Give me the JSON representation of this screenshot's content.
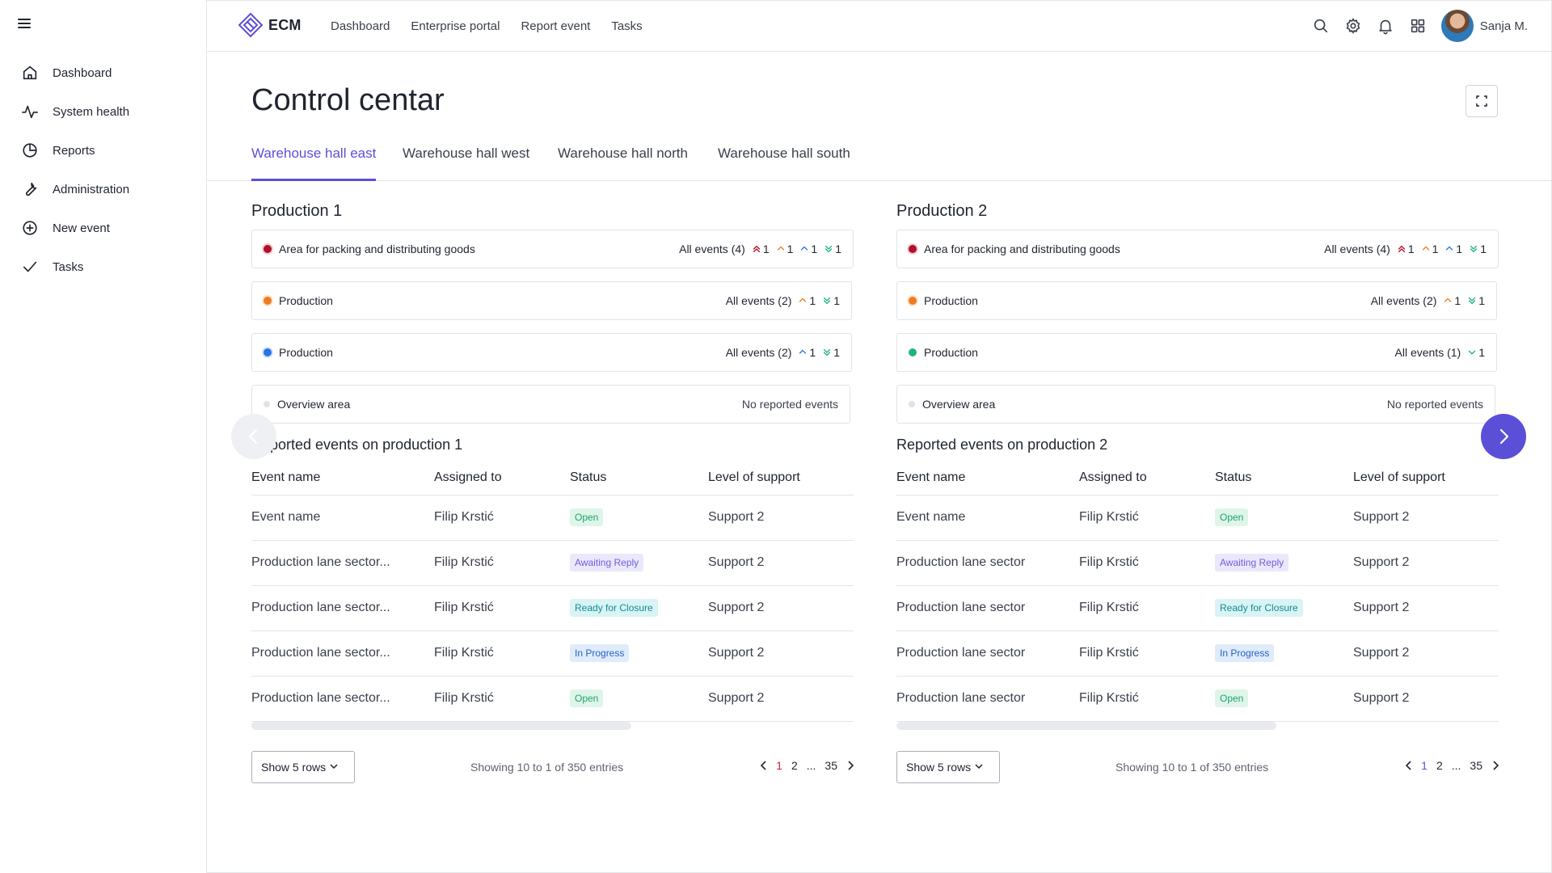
{
  "app": {
    "logo_text": "ECM",
    "user_name": "Sanja M."
  },
  "colors": {
    "accent": "#5b4fd8",
    "critical": "#b0102a",
    "high": "#f07b1f",
    "normal": "#2b73ea",
    "low": "#23b37a",
    "none": "#dfe2e6"
  },
  "sidebar": {
    "items": [
      {
        "label": "Dashboard",
        "icon": "home-icon"
      },
      {
        "label": "System health",
        "icon": "pulse-icon"
      },
      {
        "label": "Reports",
        "icon": "pie-chart-icon"
      },
      {
        "label": "Administration",
        "icon": "wrench-icon"
      },
      {
        "label": "New event",
        "icon": "plus-circle-icon"
      },
      {
        "label": "Tasks",
        "icon": "check-icon"
      }
    ]
  },
  "topnav": {
    "items": [
      "Dashboard",
      "Enterprise portal",
      "Report event",
      "Tasks"
    ]
  },
  "page": {
    "title": "Control centar",
    "tabs": [
      "Warehouse hall east",
      "Warehouse hall west",
      "Warehouse hall north",
      "Warehouse hall south"
    ],
    "active_tab": 0
  },
  "panels": [
    {
      "title": "Production 1",
      "areas": [
        {
          "name": "Area for packing and distributing goods",
          "dot": "critical",
          "summary": "All events (4)",
          "counts": {
            "critical": "1",
            "high": "1",
            "normal": "1",
            "low": "1"
          }
        },
        {
          "name": "Production",
          "dot": "high",
          "summary": "All events (2)",
          "counts": {
            "high": "1",
            "low": "1"
          }
        },
        {
          "name": "Production",
          "dot": "normal",
          "summary": "All events (2)",
          "counts": {
            "normal": "1",
            "low": "1"
          }
        },
        {
          "name": "Overview area",
          "dot": "none",
          "summary": "No reported events"
        }
      ],
      "events_title": "Reported events on production 1",
      "columns": [
        "Event name",
        "Assigned to",
        "Status",
        "Level of support"
      ],
      "rows": [
        {
          "event": "Event name",
          "assigned": "Filip Krstić",
          "status": "Open",
          "support": "Support 2"
        },
        {
          "event": "Production lane sector...",
          "assigned": "Filip Krstić",
          "status": "Awaiting Reply",
          "support": "Support 2"
        },
        {
          "event": "Production lane sector...",
          "assigned": "Filip Krstić",
          "status": "Ready for Closure",
          "support": "Support 2"
        },
        {
          "event": "Production lane sector...",
          "assigned": "Filip Krstić",
          "status": "In Progress",
          "support": "Support 2"
        },
        {
          "event": "Production lane sector...",
          "assigned": "Filip Krstić",
          "status": "Open",
          "support": "Support 2"
        }
      ],
      "rows_button": "Show 5 rows",
      "showing": "Showing 10 to 1 of 350 entries",
      "pages": [
        "1",
        "2",
        "...",
        "35"
      ],
      "current_page": "1"
    },
    {
      "title": "Production 2",
      "areas": [
        {
          "name": "Area for packing and distributing goods",
          "dot": "critical",
          "summary": "All events (4)",
          "counts": {
            "critical": "1",
            "high": "1",
            "normal": "1",
            "low": "1"
          }
        },
        {
          "name": "Production",
          "dot": "high",
          "summary": "All events (2)",
          "counts": {
            "high": "1",
            "low": "1"
          }
        },
        {
          "name": "Production",
          "dot": "low",
          "summary": "All events (1)",
          "counts": {
            "low_single": "1"
          }
        },
        {
          "name": "Overview area",
          "dot": "none",
          "summary": "No reported events"
        }
      ],
      "events_title": "Reported events on production 2",
      "columns": [
        "Event name",
        "Assigned to",
        "Status",
        "Level of support"
      ],
      "rows": [
        {
          "event": "Event name",
          "assigned": "Filip Krstić",
          "status": "Open",
          "support": "Support 2"
        },
        {
          "event": "Production lane sector",
          "assigned": "Filip Krstić",
          "status": "Awaiting Reply",
          "support": "Support 2"
        },
        {
          "event": "Production lane sector",
          "assigned": "Filip Krstić",
          "status": "Ready for Closure",
          "support": "Support 2"
        },
        {
          "event": "Production lane sector",
          "assigned": "Filip Krstić",
          "status": "In Progress",
          "support": "Support 2"
        },
        {
          "event": "Production lane sector",
          "assigned": "Filip Krstić",
          "status": "Open",
          "support": "Support 2"
        }
      ],
      "rows_button": "Show 5 rows",
      "showing": "Showing 10 to 1 of 350 entries",
      "pages": [
        "1",
        "2",
        "...",
        "35"
      ],
      "current_page": "1"
    }
  ],
  "status_styles": {
    "Open": {
      "bg": "#dff5ea",
      "fg": "#1aa56b"
    },
    "Awaiting Reply": {
      "bg": "#ebe8fb",
      "fg": "#6d5fe0"
    },
    "Ready for Closure": {
      "bg": "#daf3f4",
      "fg": "#0d8e97"
    },
    "In Progress": {
      "bg": "#e0ebfb",
      "fg": "#2463c9"
    }
  }
}
